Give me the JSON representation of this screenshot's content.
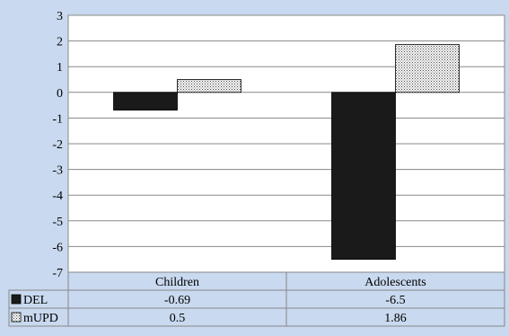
{
  "chart_data": {
    "type": "bar",
    "categories": [
      "Children",
      "Adolescents"
    ],
    "series": [
      {
        "name": "DEL",
        "values": [
          -0.69,
          -6.5
        ],
        "fill": "#1a1a1a",
        "pattern": "solid"
      },
      {
        "name": "mUPD",
        "values": [
          0.5,
          1.86
        ],
        "fill": "#ffffff",
        "pattern": "dotted"
      }
    ],
    "table": {
      "rows": [
        {
          "label": "DEL",
          "values": [
            "-0.69",
            "-6.5"
          ]
        },
        {
          "label": "mUPD",
          "values": [
            "0.5",
            "1.86"
          ]
        }
      ]
    },
    "ylim": [
      -7,
      3
    ],
    "yticks": [
      "3",
      "2",
      "1",
      "0",
      "-1",
      "-2",
      "-3",
      "-4",
      "-5",
      "-6",
      "-7"
    ],
    "grid": true,
    "legend": "data-table",
    "colors": {
      "background": "#c9d9ef",
      "plot": "#ffffff",
      "grid": "#888888"
    }
  }
}
